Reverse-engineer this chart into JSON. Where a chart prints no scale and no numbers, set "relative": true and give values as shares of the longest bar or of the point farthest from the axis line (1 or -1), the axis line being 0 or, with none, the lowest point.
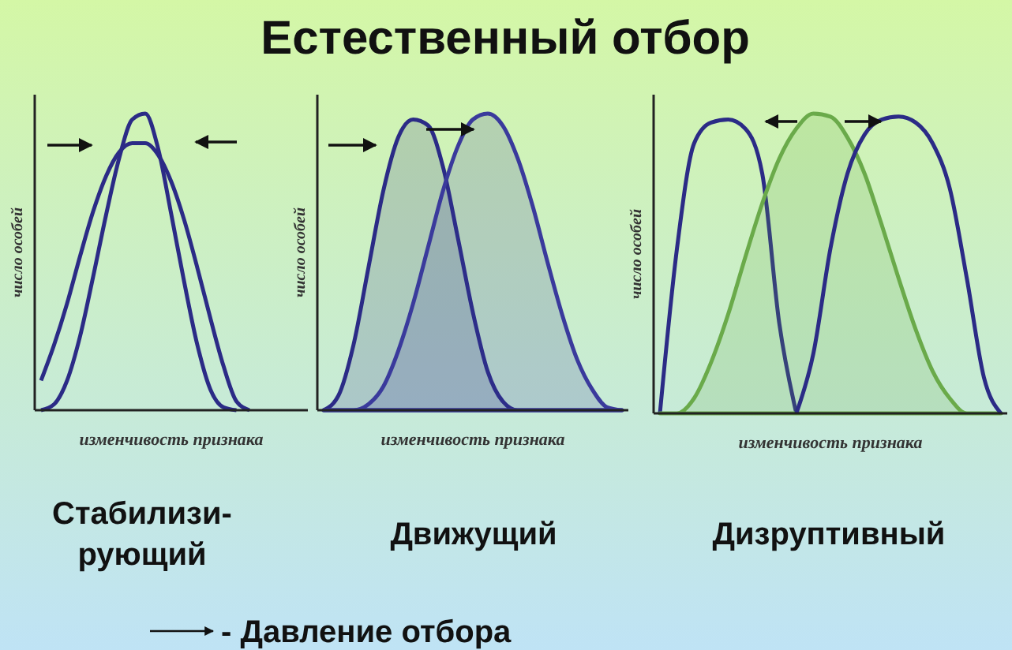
{
  "chart_data": [
    {
      "type": "line",
      "subtitle": "Стабилизи-\nрующий",
      "xlabel": "изменчивость признака",
      "ylabel": "число особей",
      "relative": true,
      "annotations": [
        "- Давление отбора"
      ],
      "categories": [
        null,
        null,
        null,
        null,
        null,
        null,
        null,
        null,
        null,
        null,
        null,
        null,
        null,
        null,
        null,
        null,
        null,
        null,
        null,
        null,
        null
      ],
      "series": [
        {
          "color": "#2b2b86",
          "values": [
            0.1,
            0.22,
            0.36,
            0.52,
            0.67,
            0.79,
            0.87,
            0.9,
            0.9,
            0.86,
            0.77,
            0.64,
            0.48,
            0.31,
            0.15,
            0.03,
            0,
            null,
            null,
            null,
            null
          ]
        },
        {
          "color": "#2b2b86",
          "values": [
            0,
            0.02,
            0.1,
            0.25,
            0.45,
            0.66,
            0.85,
            0.98,
            1.0,
            0.88,
            0.66,
            0.43,
            0.22,
            0.07,
            0.01,
            0,
            null,
            null,
            null,
            null,
            null
          ]
        }
      ]
    },
    {
      "type": "area",
      "title": "Естественный отбор",
      "subtitle": "Движущий",
      "xlabel": "изменчивость признака",
      "ylabel": "число особей",
      "relative": true,
      "categories": [
        null,
        null,
        null,
        null,
        null,
        null,
        null,
        null,
        null,
        null,
        null,
        null,
        null,
        null,
        null,
        null,
        null,
        null,
        null,
        null,
        null
      ],
      "series": [
        {
          "color": "#2b2b86",
          "values": [
            0,
            0.05,
            0.22,
            0.48,
            0.74,
            0.92,
            0.98,
            0.96,
            0.82,
            0.58,
            0.33,
            0.13,
            0.03,
            0,
            0,
            0,
            0,
            0,
            0,
            0,
            0
          ]
        },
        {
          "color": "#3a3a9c",
          "values": [
            0,
            0,
            0,
            0.02,
            0.08,
            0.2,
            0.36,
            0.55,
            0.74,
            0.89,
            0.98,
            1.0,
            0.96,
            0.85,
            0.69,
            0.5,
            0.32,
            0.17,
            0.07,
            0.01,
            0
          ]
        }
      ]
    },
    {
      "type": "line",
      "subtitle": "Дизруптивный",
      "xlabel": "изменчивость признака",
      "ylabel": "число особей",
      "relative": true,
      "categories": [
        null,
        null,
        null,
        null,
        null,
        null,
        null,
        null,
        null,
        null,
        null,
        null,
        null,
        null,
        null,
        null,
        null,
        null,
        null,
        null,
        null
      ],
      "series": [
        {
          "color": "#2b2b86",
          "values": [
            0,
            0.55,
            0.9,
            0.97,
            0.98,
            0.95,
            0.8,
            0.3,
            0,
            null,
            null,
            null,
            null,
            null,
            null,
            null,
            null,
            null,
            null,
            null,
            null
          ]
        },
        {
          "type": "area",
          "color": "#6aaa4a",
          "values": [
            0,
            0,
            0.05,
            0.17,
            0.33,
            0.52,
            0.7,
            0.85,
            0.95,
            1.0,
            0.99,
            0.92,
            0.8,
            0.63,
            0.45,
            0.28,
            0.14,
            0.05,
            0,
            0,
            0
          ]
        },
        {
          "color": "#2b2b86",
          "values": [
            null,
            null,
            null,
            null,
            null,
            null,
            null,
            null,
            0,
            0.2,
            0.55,
            0.8,
            0.93,
            0.98,
            0.99,
            0.97,
            0.9,
            0.75,
            0.45,
            0.12,
            0
          ]
        }
      ]
    }
  ]
}
